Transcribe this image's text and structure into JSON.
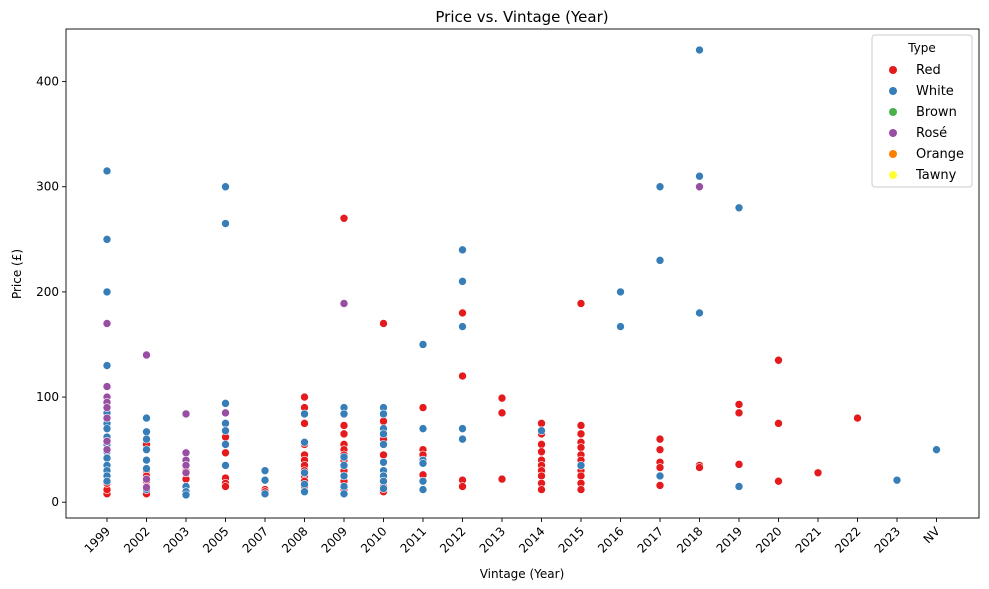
{
  "chart_data": {
    "type": "scatter",
    "title": "Price vs. Vintage (Year)",
    "xlabel": "Vintage (Year)",
    "ylabel": "Price (£)",
    "categories": [
      "1999",
      "2002",
      "2003",
      "2005",
      "2007",
      "2008",
      "2009",
      "2010",
      "2011",
      "2012",
      "2013",
      "2014",
      "2015",
      "2016",
      "2017",
      "2018",
      "2019",
      "2020",
      "2021",
      "2022",
      "2023",
      "NV"
    ],
    "y_ticks": [
      0,
      100,
      200,
      300,
      400
    ],
    "ylim": [
      -15,
      450
    ],
    "grid": false,
    "legend": {
      "title": "Type",
      "placement": "top-right"
    },
    "series": [
      {
        "name": "Red",
        "color": "#e41a1c",
        "points": [
          [
            "1999",
            8
          ],
          [
            "1999",
            12
          ],
          [
            "1999",
            18
          ],
          [
            "2002",
            55
          ],
          [
            "2002",
            30
          ],
          [
            "2002",
            25
          ],
          [
            "2002",
            20
          ],
          [
            "2002",
            15
          ],
          [
            "2002",
            10
          ],
          [
            "2002",
            8
          ],
          [
            "2003",
            30
          ],
          [
            "2003",
            22
          ],
          [
            "2003",
            15
          ],
          [
            "2005",
            62
          ],
          [
            "2005",
            47
          ],
          [
            "2005",
            23
          ],
          [
            "2005",
            18
          ],
          [
            "2005",
            15
          ],
          [
            "2007",
            12
          ],
          [
            "2007",
            10
          ],
          [
            "2008",
            100
          ],
          [
            "2008",
            90
          ],
          [
            "2008",
            75
          ],
          [
            "2008",
            55
          ],
          [
            "2008",
            45
          ],
          [
            "2008",
            40
          ],
          [
            "2008",
            35
          ],
          [
            "2008",
            30
          ],
          [
            "2008",
            25
          ],
          [
            "2008",
            20
          ],
          [
            "2008",
            15
          ],
          [
            "2009",
            270
          ],
          [
            "2009",
            73
          ],
          [
            "2009",
            65
          ],
          [
            "2009",
            55
          ],
          [
            "2009",
            50
          ],
          [
            "2009",
            45
          ],
          [
            "2009",
            40
          ],
          [
            "2009",
            30
          ],
          [
            "2009",
            20
          ],
          [
            "2009",
            12
          ],
          [
            "2010",
            170
          ],
          [
            "2010",
            83
          ],
          [
            "2010",
            77
          ],
          [
            "2010",
            60
          ],
          [
            "2010",
            45
          ],
          [
            "2010",
            22
          ],
          [
            "2010",
            15
          ],
          [
            "2010",
            10
          ],
          [
            "2011",
            90
          ],
          [
            "2011",
            50
          ],
          [
            "2011",
            45
          ],
          [
            "2011",
            40
          ],
          [
            "2011",
            26
          ],
          [
            "2011",
            20
          ],
          [
            "2012",
            180
          ],
          [
            "2012",
            120
          ],
          [
            "2012",
            21
          ],
          [
            "2012",
            15
          ],
          [
            "2013",
            99
          ],
          [
            "2013",
            85
          ],
          [
            "2013",
            22
          ],
          [
            "2014",
            75
          ],
          [
            "2014",
            65
          ],
          [
            "2014",
            55
          ],
          [
            "2014",
            48
          ],
          [
            "2014",
            40
          ],
          [
            "2014",
            35
          ],
          [
            "2014",
            30
          ],
          [
            "2014",
            25
          ],
          [
            "2014",
            18
          ],
          [
            "2014",
            12
          ],
          [
            "2015",
            189
          ],
          [
            "2015",
            73
          ],
          [
            "2015",
            65
          ],
          [
            "2015",
            57
          ],
          [
            "2015",
            52
          ],
          [
            "2015",
            45
          ],
          [
            "2015",
            40
          ],
          [
            "2015",
            30
          ],
          [
            "2015",
            25
          ],
          [
            "2015",
            18
          ],
          [
            "2015",
            12
          ],
          [
            "2017",
            60
          ],
          [
            "2017",
            50
          ],
          [
            "2017",
            38
          ],
          [
            "2017",
            33
          ],
          [
            "2017",
            16
          ],
          [
            "2018",
            35
          ],
          [
            "2018",
            33
          ],
          [
            "2019",
            93
          ],
          [
            "2019",
            85
          ],
          [
            "2019",
            36
          ],
          [
            "2020",
            135
          ],
          [
            "2020",
            75
          ],
          [
            "2020",
            20
          ],
          [
            "2021",
            28
          ],
          [
            "2022",
            80
          ]
        ]
      },
      {
        "name": "White",
        "color": "#377eb8",
        "points": [
          [
            "1999",
            315
          ],
          [
            "1999",
            250
          ],
          [
            "1999",
            200
          ],
          [
            "1999",
            130
          ],
          [
            "1999",
            85
          ],
          [
            "1999",
            75
          ],
          [
            "1999",
            70
          ],
          [
            "1999",
            62
          ],
          [
            "1999",
            55
          ],
          [
            "1999",
            48
          ],
          [
            "1999",
            42
          ],
          [
            "1999",
            35
          ],
          [
            "1999",
            30
          ],
          [
            "1999",
            25
          ],
          [
            "1999",
            20
          ],
          [
            "2002",
            80
          ],
          [
            "2002",
            67
          ],
          [
            "2002",
            60
          ],
          [
            "2002",
            50
          ],
          [
            "2002",
            40
          ],
          [
            "2002",
            32
          ],
          [
            "2002",
            12
          ],
          [
            "2003",
            28
          ],
          [
            "2003",
            15
          ],
          [
            "2003",
            10
          ],
          [
            "2003",
            7
          ],
          [
            "2005",
            300
          ],
          [
            "2005",
            265
          ],
          [
            "2005",
            94
          ],
          [
            "2005",
            75
          ],
          [
            "2005",
            68
          ],
          [
            "2005",
            55
          ],
          [
            "2005",
            35
          ],
          [
            "2007",
            30
          ],
          [
            "2007",
            21
          ],
          [
            "2007",
            8
          ],
          [
            "2008",
            84
          ],
          [
            "2008",
            57
          ],
          [
            "2008",
            28
          ],
          [
            "2008",
            17
          ],
          [
            "2008",
            10
          ],
          [
            "2009",
            90
          ],
          [
            "2009",
            84
          ],
          [
            "2009",
            43
          ],
          [
            "2009",
            35
          ],
          [
            "2009",
            25
          ],
          [
            "2009",
            15
          ],
          [
            "2009",
            8
          ],
          [
            "2010",
            90
          ],
          [
            "2010",
            84
          ],
          [
            "2010",
            70
          ],
          [
            "2010",
            65
          ],
          [
            "2010",
            55
          ],
          [
            "2010",
            38
          ],
          [
            "2010",
            30
          ],
          [
            "2010",
            25
          ],
          [
            "2010",
            20
          ],
          [
            "2010",
            13
          ],
          [
            "2011",
            150
          ],
          [
            "2011",
            70
          ],
          [
            "2011",
            40
          ],
          [
            "2011",
            37
          ],
          [
            "2011",
            20
          ],
          [
            "2011",
            12
          ],
          [
            "2012",
            240
          ],
          [
            "2012",
            210
          ],
          [
            "2012",
            167
          ],
          [
            "2012",
            70
          ],
          [
            "2012",
            60
          ],
          [
            "2014",
            68
          ],
          [
            "2015",
            35
          ],
          [
            "2016",
            200
          ],
          [
            "2016",
            167
          ],
          [
            "2017",
            300
          ],
          [
            "2017",
            230
          ],
          [
            "2017",
            25
          ],
          [
            "2018",
            430
          ],
          [
            "2018",
            310
          ],
          [
            "2018",
            180
          ],
          [
            "2019",
            280
          ],
          [
            "2019",
            15
          ],
          [
            "2023",
            21
          ],
          [
            "NV",
            50
          ]
        ]
      },
      {
        "name": "Brown",
        "color": "#4daf4a",
        "points": []
      },
      {
        "name": "Rosé",
        "color": "#984ea3",
        "points": [
          [
            "1999",
            170
          ],
          [
            "1999",
            110
          ],
          [
            "1999",
            100
          ],
          [
            "1999",
            95
          ],
          [
            "1999",
            90
          ],
          [
            "1999",
            80
          ],
          [
            "1999",
            58
          ],
          [
            "1999",
            50
          ],
          [
            "2002",
            140
          ],
          [
            "2002",
            22
          ],
          [
            "2002",
            14
          ],
          [
            "2003",
            84
          ],
          [
            "2003",
            47
          ],
          [
            "2003",
            40
          ],
          [
            "2003",
            35
          ],
          [
            "2003",
            28
          ],
          [
            "2005",
            85
          ],
          [
            "2009",
            189
          ],
          [
            "2018",
            300
          ]
        ]
      },
      {
        "name": "Orange",
        "color": "#ff7f00",
        "points": []
      },
      {
        "name": "Tawny",
        "color": "#ffff33",
        "points": []
      }
    ]
  }
}
